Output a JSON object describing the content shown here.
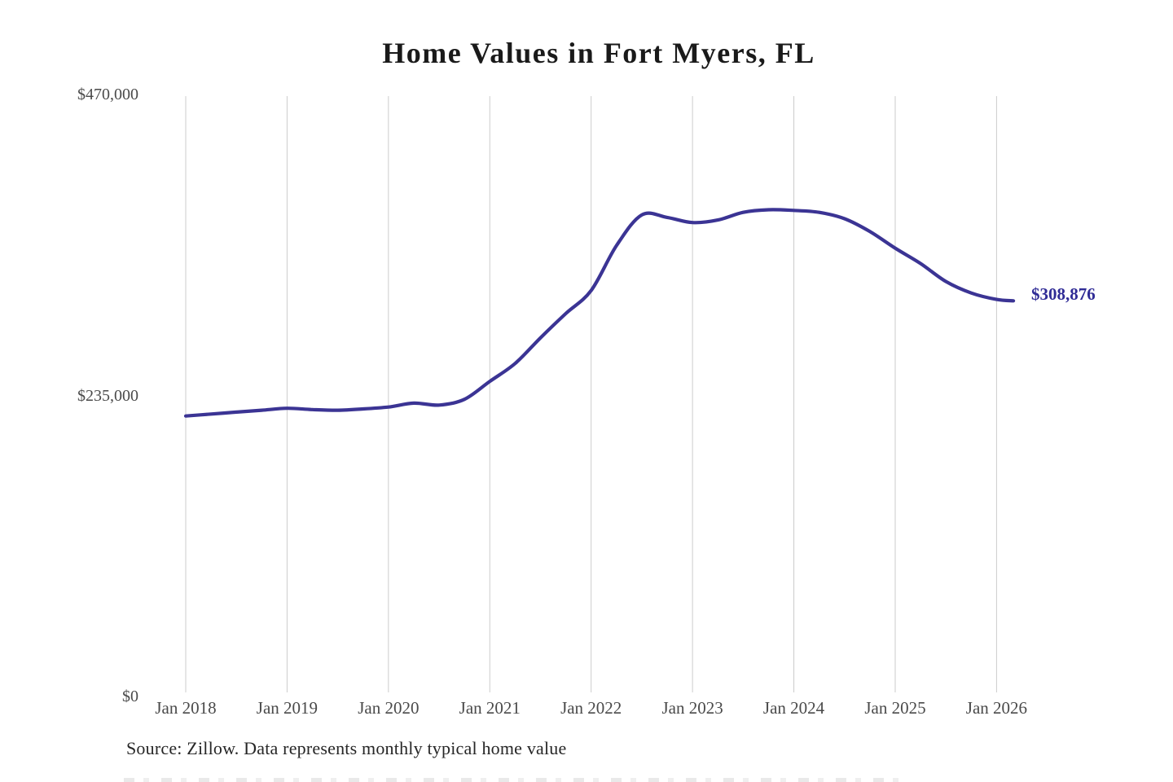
{
  "chart_data": {
    "type": "line",
    "title": "Home Values in Fort Myers, FL",
    "source_note": "Source: Zillow. Data represents monthly typical home value",
    "end_label": "$308,876",
    "final_value": 308876,
    "line_color": "#3b3494",
    "end_label_color": "#302c96",
    "gridline_color": "#cccccc",
    "axis_label_color": "#4a4a4a",
    "legend": "none",
    "grid": "vertical-only",
    "y_axis": {
      "min": 0,
      "max": 470000,
      "ticks": [
        {
          "label": "$470,000",
          "value": 470000
        },
        {
          "label": "$235,000",
          "value": 235000
        },
        {
          "label": "$0",
          "value": 0
        }
      ]
    },
    "x_axis": {
      "tick_labels": [
        "Jan 2018",
        "Jan 2019",
        "Jan 2020",
        "Jan 2021",
        "Jan 2022",
        "Jan 2023",
        "Jan 2024",
        "Jan 2025",
        "Jan 2026"
      ],
      "tick_month_index": [
        0,
        12,
        24,
        36,
        48,
        60,
        72,
        84,
        96
      ]
    },
    "series": [
      {
        "name": "Monthly typical home value",
        "x_month_index": [
          0,
          3,
          6,
          9,
          12,
          15,
          18,
          21,
          24,
          27,
          30,
          33,
          36,
          39,
          42,
          45,
          48,
          51,
          54,
          57,
          60,
          63,
          66,
          69,
          72,
          75,
          78,
          81,
          84,
          87,
          90,
          93,
          96,
          98
        ],
        "values": [
          219000,
          220500,
          222000,
          223500,
          225000,
          224000,
          223500,
          224500,
          226000,
          229000,
          227500,
          232000,
          246000,
          260000,
          280000,
          299000,
          317000,
          352000,
          376000,
          374000,
          370000,
          372000,
          378000,
          380000,
          379500,
          378000,
          373000,
          363000,
          350000,
          338000,
          324000,
          315000,
          310000,
          308876
        ]
      }
    ]
  }
}
